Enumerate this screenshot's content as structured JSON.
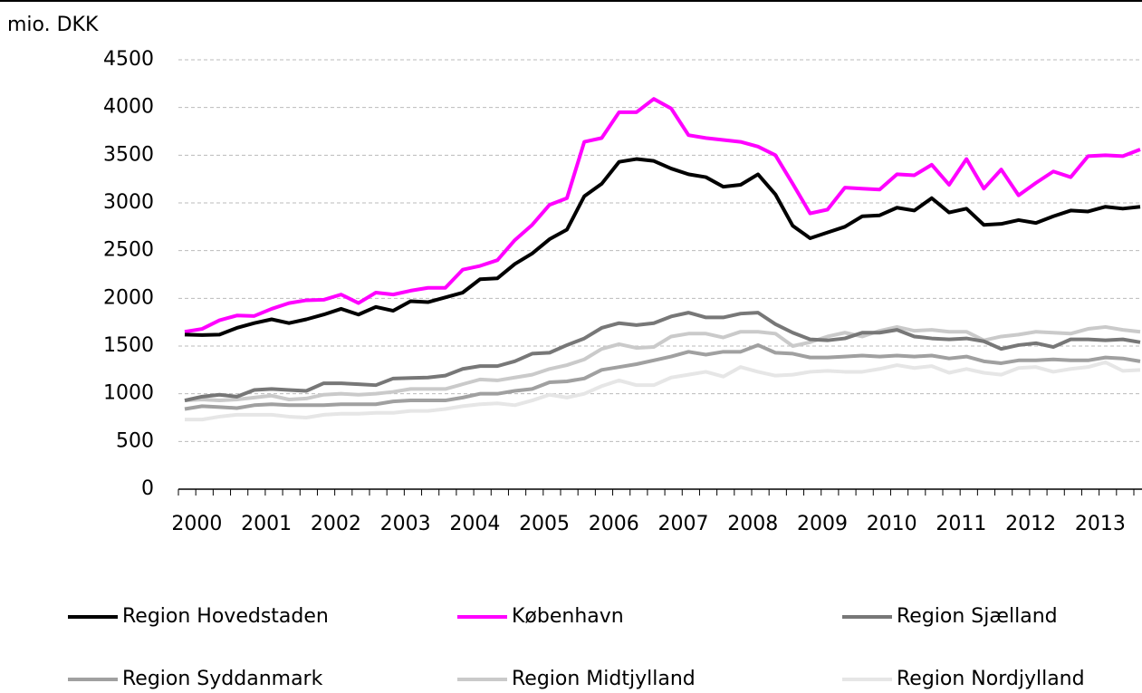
{
  "chart_data": {
    "type": "line",
    "y_label": "mio. DKK",
    "categories": [
      "2000",
      null,
      null,
      null,
      "2001",
      null,
      null,
      null,
      "2002",
      null,
      null,
      null,
      "2003",
      null,
      null,
      null,
      "2004",
      null,
      null,
      null,
      "2005",
      null,
      null,
      null,
      "2006",
      null,
      null,
      null,
      "2007",
      null,
      null,
      null,
      "2008",
      null,
      null,
      null,
      "2009",
      null,
      null,
      null,
      "2010",
      null,
      null,
      null,
      "2011",
      null,
      null,
      null,
      "2012",
      null,
      null,
      null,
      "2013",
      null,
      null,
      null
    ],
    "ylim": [
      0,
      4500
    ],
    "yticks": [
      0,
      500,
      1000,
      1500,
      2000,
      2500,
      3000,
      3500,
      4000,
      4500
    ],
    "grid": true,
    "legend": "bottom",
    "series": [
      {
        "name": "Region Hovedstaden",
        "color": "#000000",
        "values": [
          1620,
          1615,
          1620,
          1690,
          1740,
          1780,
          1740,
          1780,
          1830,
          1890,
          1830,
          1910,
          1870,
          1970,
          1960,
          2010,
          2060,
          2200,
          2210,
          2360,
          2470,
          2620,
          2720,
          3070,
          3200,
          3430,
          3460,
          3440,
          3360,
          3300,
          3270,
          3170,
          3190,
          3300,
          3090,
          2760,
          2630,
          2690,
          2750,
          2860,
          2870,
          2950,
          2920,
          3050,
          2900,
          2940,
          2770,
          2780,
          2820,
          2790,
          2860,
          2920,
          2910,
          2960,
          2940,
          2960
        ]
      },
      {
        "name": "København",
        "color": "#ff00ff",
        "values": [
          1650,
          1680,
          1770,
          1820,
          1815,
          1890,
          1950,
          1980,
          1985,
          2040,
          1950,
          2060,
          2040,
          2080,
          2110,
          2110,
          2300,
          2340,
          2400,
          2610,
          2770,
          2980,
          3050,
          3640,
          3680,
          3950,
          3950,
          4090,
          3990,
          3710,
          3680,
          3660,
          3640,
          3590,
          3500,
          3200,
          2890,
          2930,
          3160,
          3150,
          3140,
          3300,
          3290,
          3400,
          3190,
          3460,
          3150,
          3350,
          3080,
          3210,
          3330,
          3270,
          3490,
          3500,
          3490,
          3560
        ]
      },
      {
        "name": "Region Sjælland",
        "color": "#777777",
        "values": [
          930,
          970,
          990,
          970,
          1040,
          1050,
          1040,
          1030,
          1110,
          1110,
          1100,
          1090,
          1160,
          1165,
          1170,
          1190,
          1260,
          1290,
          1290,
          1340,
          1420,
          1430,
          1510,
          1580,
          1690,
          1740,
          1720,
          1740,
          1810,
          1850,
          1800,
          1800,
          1840,
          1850,
          1730,
          1640,
          1570,
          1560,
          1580,
          1640,
          1640,
          1670,
          1600,
          1580,
          1570,
          1580,
          1550,
          1470,
          1510,
          1530,
          1490,
          1570,
          1570,
          1560,
          1570,
          1540
        ]
      },
      {
        "name": "Region Syddanmark",
        "color": "#a0a0a0",
        "values": [
          840,
          870,
          860,
          850,
          880,
          890,
          880,
          880,
          880,
          890,
          890,
          890,
          920,
          930,
          930,
          930,
          960,
          1000,
          1000,
          1030,
          1050,
          1120,
          1130,
          1160,
          1250,
          1280,
          1310,
          1350,
          1390,
          1440,
          1410,
          1440,
          1440,
          1510,
          1430,
          1420,
          1380,
          1380,
          1390,
          1400,
          1390,
          1400,
          1390,
          1400,
          1370,
          1390,
          1340,
          1320,
          1350,
          1350,
          1360,
          1350,
          1350,
          1380,
          1370,
          1340
        ]
      },
      {
        "name": "Region Midtjylland",
        "color": "#cacaca",
        "values": [
          930,
          940,
          930,
          940,
          960,
          980,
          940,
          950,
          990,
          1000,
          990,
          1000,
          1020,
          1050,
          1050,
          1050,
          1100,
          1150,
          1140,
          1170,
          1200,
          1260,
          1300,
          1360,
          1470,
          1520,
          1480,
          1490,
          1600,
          1630,
          1630,
          1590,
          1650,
          1650,
          1630,
          1500,
          1540,
          1600,
          1640,
          1600,
          1660,
          1700,
          1660,
          1670,
          1650,
          1650,
          1560,
          1600,
          1620,
          1650,
          1640,
          1630,
          1680,
          1700,
          1670,
          1650
        ]
      },
      {
        "name": "Region Nordjylland",
        "color": "#e6e6e6",
        "values": [
          730,
          730,
          760,
          780,
          780,
          780,
          760,
          750,
          780,
          790,
          790,
          800,
          800,
          820,
          820,
          840,
          870,
          890,
          900,
          880,
          930,
          990,
          960,
          1000,
          1080,
          1140,
          1090,
          1090,
          1170,
          1200,
          1230,
          1180,
          1280,
          1230,
          1190,
          1200,
          1230,
          1240,
          1230,
          1230,
          1260,
          1300,
          1270,
          1290,
          1220,
          1260,
          1220,
          1200,
          1270,
          1280,
          1230,
          1260,
          1280,
          1330,
          1240,
          1250
        ]
      }
    ]
  }
}
